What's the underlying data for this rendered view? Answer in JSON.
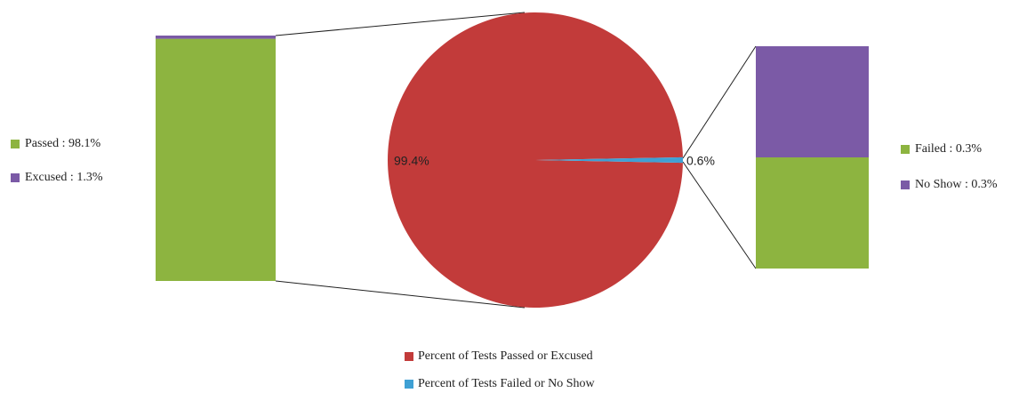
{
  "chart_data": {
    "type": "pie",
    "categories": [
      "Percent of Tests Passed or Excused",
      "Percent of Tests Failed or No Show"
    ],
    "values": [
      99.4,
      0.6
    ],
    "value_labels": [
      "99.4%",
      "0.6%"
    ],
    "colors": [
      "#c23b3a",
      "#3fa0d4"
    ],
    "left_bar": {
      "segments": [
        {
          "label": "Passed : 98.1%",
          "value": 98.1,
          "color": "#8db440"
        },
        {
          "label": "Excused : 1.3%",
          "value": 1.3,
          "color": "#7b5aa6"
        }
      ]
    },
    "right_bar": {
      "segments": [
        {
          "label": "Failed : 0.3%",
          "value": 0.3,
          "color": "#8db440"
        },
        {
          "label": "No Show : 0.3%",
          "value": 0.3,
          "color": "#7b5aa6"
        }
      ]
    }
  }
}
